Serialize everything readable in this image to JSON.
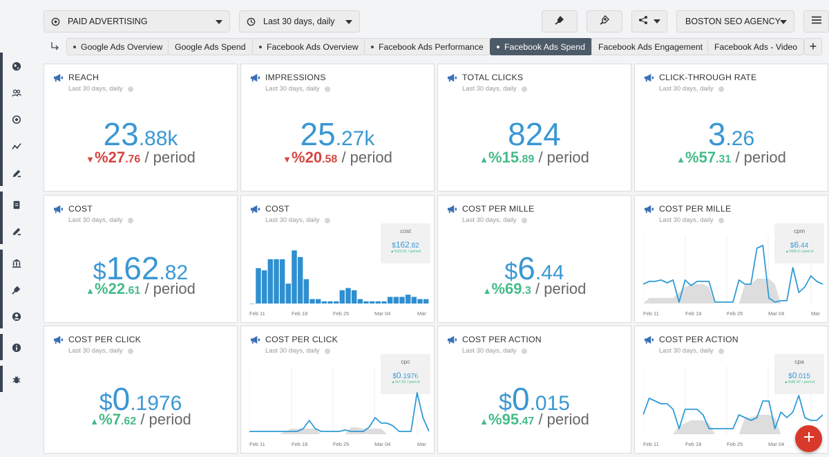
{
  "topbar": {
    "dashboard_select": "PAID ADVERTISING",
    "date_select": "Last 30 days, daily",
    "agency_select": "BOSTON SEO AGENCY"
  },
  "tabs": [
    {
      "label": "Google Ads Overview",
      "dot": true,
      "active": false
    },
    {
      "label": "Google Ads Spend",
      "dot": false,
      "active": false
    },
    {
      "label": "Facebook Ads Overview",
      "dot": true,
      "active": false
    },
    {
      "label": "Facebook Ads Performance",
      "dot": true,
      "active": false
    },
    {
      "label": "Facebook Ads Spend",
      "dot": true,
      "active": true
    },
    {
      "label": "Facebook Ads Engagement",
      "dot": false,
      "active": false
    },
    {
      "label": "Facebook Ads - Video",
      "dot": false,
      "active": false
    }
  ],
  "period_label": "Last 30 days, daily",
  "period_suffix": "/ period",
  "cards": {
    "reach": {
      "title": "REACH",
      "cur": "",
      "maj": "23",
      "min": ".88k",
      "dir": "down",
      "pct_maj": "%27",
      "pct_min": ".76"
    },
    "impressions": {
      "title": "IMPRESSIONS",
      "cur": "",
      "maj": "25",
      "min": ".27k",
      "dir": "down",
      "pct_maj": "%20",
      "pct_min": ".58"
    },
    "clicks": {
      "title": "TOTAL CLICKS",
      "cur": "",
      "maj": "824",
      "min": "",
      "dir": "up",
      "pct_maj": "%15",
      "pct_min": ".89"
    },
    "ctr": {
      "title": "CLICK-THROUGH RATE",
      "cur": "",
      "maj": "3",
      "min": ".26",
      "dir": "up",
      "pct_maj": "%57",
      "pct_min": ".31"
    },
    "cost": {
      "title": "COST",
      "cur": "$",
      "maj": "162",
      "min": ".82",
      "dir": "up",
      "pct_maj": "%22",
      "pct_min": ".61"
    },
    "cpm": {
      "title": "COST PER MILLE",
      "cur": "$",
      "maj": "6",
      "min": ".44",
      "dir": "up",
      "pct_maj": "%69",
      "pct_min": ".3"
    },
    "cpc": {
      "title": "COST PER CLICK",
      "cur": "$",
      "maj": "0",
      "min": ".1976",
      "dir": "up",
      "pct_maj": "%7",
      "pct_min": ".62"
    },
    "cpa": {
      "title": "COST PER ACTION",
      "cur": "$",
      "maj": "0",
      "min": ".015",
      "dir": "up",
      "pct_maj": "%95",
      "pct_min": ".47"
    }
  },
  "charts": {
    "cost_bar": {
      "title": "COST",
      "legend_key": "cost",
      "legend_val_maj": "162",
      "legend_val_min": ".82",
      "legend_chg": "▲%22.61 / period"
    },
    "cpm_line": {
      "title": "COST PER MILLE",
      "legend_key": "cpm",
      "legend_val_maj": "6",
      "legend_val_min": ".44",
      "legend_chg": "▲%69.3 / period"
    },
    "cpc_line": {
      "title": "COST PER CLICK",
      "legend_key": "cpc",
      "legend_val_maj": "0",
      "legend_val_min": ".1976",
      "legend_chg": "▲%7.62 / period"
    },
    "cpa_line": {
      "title": "COST PER ACTION",
      "legend_key": "cpa",
      "legend_val_maj": "0",
      "legend_val_min": ".015",
      "legend_chg": "▲%95.47 / period"
    }
  },
  "x_ticks": [
    "Feb 11",
    "Feb 18",
    "Feb 25",
    "Mar 04",
    "Mar"
  ],
  "chart_data": [
    {
      "type": "bar",
      "name": "cost",
      "values": [
        0,
        32,
        30,
        40,
        40,
        40,
        18,
        48,
        42,
        22,
        4,
        4,
        2,
        2,
        2,
        12,
        14,
        12,
        4,
        2,
        2,
        2,
        2,
        6,
        6,
        6,
        8,
        6,
        4,
        4
      ]
    },
    {
      "type": "line",
      "name": "cpm",
      "values": [
        14,
        16,
        16,
        17,
        15,
        17,
        1,
        17,
        13,
        16,
        16,
        16,
        1,
        1,
        1,
        1,
        17,
        14,
        14,
        40,
        42,
        4,
        1,
        2,
        2,
        26,
        8,
        12,
        20,
        16,
        14
      ],
      "ref": [
        0,
        4,
        4,
        4,
        4,
        4,
        8,
        12,
        14,
        14,
        14,
        12,
        0,
        0,
        0,
        0,
        0,
        14,
        14,
        18,
        18,
        18,
        14,
        0,
        0,
        0,
        0,
        0,
        0,
        0,
        0
      ]
    },
    {
      "type": "line",
      "name": "cpc",
      "values": [
        2,
        2,
        2,
        2,
        2,
        2,
        2,
        2,
        2,
        4,
        10,
        4,
        2,
        2,
        2,
        2,
        3,
        2,
        2,
        2,
        5,
        12,
        8,
        8,
        6,
        2,
        2,
        2,
        30,
        12,
        2
      ],
      "ref": [
        0,
        0,
        0,
        0,
        0,
        0,
        2,
        4,
        4,
        4,
        4,
        4,
        0,
        0,
        0,
        0,
        0,
        5,
        5,
        4,
        4,
        4,
        4,
        0,
        0,
        0,
        0,
        0,
        0,
        0,
        0
      ]
    },
    {
      "type": "line",
      "name": "cpa",
      "values": [
        14,
        26,
        24,
        22,
        22,
        18,
        4,
        18,
        18,
        18,
        14,
        4,
        4,
        4,
        4,
        4,
        14,
        12,
        10,
        12,
        24,
        24,
        4,
        16,
        12,
        16,
        28,
        12,
        10,
        10,
        14
      ],
      "ref": [
        0,
        0,
        0,
        0,
        0,
        0,
        6,
        8,
        10,
        10,
        10,
        8,
        0,
        0,
        0,
        0,
        0,
        12,
        12,
        14,
        14,
        14,
        12,
        0,
        0,
        0,
        0,
        0,
        0,
        0,
        0
      ]
    }
  ]
}
